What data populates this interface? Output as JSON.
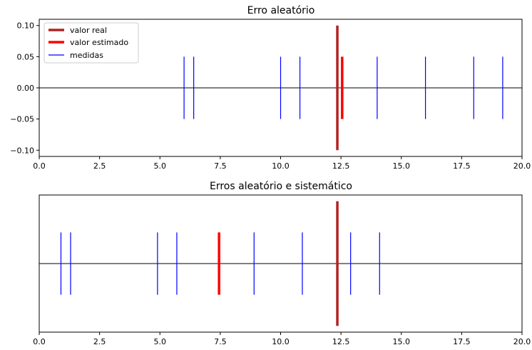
{
  "chart_data": [
    {
      "type": "line",
      "title": "Erro aleatório",
      "xlim": [
        0,
        20
      ],
      "ylim": [
        -0.11,
        0.11
      ],
      "x_ticks": [
        0.0,
        2.5,
        5.0,
        7.5,
        10.0,
        12.5,
        15.0,
        17.5,
        20.0
      ],
      "x_tick_labels": [
        "0.0",
        "2.5",
        "5.0",
        "7.5",
        "10.0",
        "12.5",
        "15.0",
        "17.5",
        "20.0"
      ],
      "y_ticks": [
        0.1,
        0.05,
        0.0,
        -0.05,
        -0.1
      ],
      "y_tick_labels": [
        "0.10",
        "0.05",
        "0.00",
        "−0.05",
        "−0.10"
      ],
      "show_y_ticks": true,
      "legend": {
        "placement": "top-left",
        "entries": [
          {
            "label": "valor real",
            "color": "#b22222"
          },
          {
            "label": "valor estimado",
            "color": "#ff0000"
          },
          {
            "label": "medidas",
            "color": "#0000ff"
          }
        ]
      },
      "zero_line": 0,
      "true_value": {
        "x": 12.35,
        "ymin": -0.1,
        "ymax": 0.1,
        "color": "#b22222"
      },
      "estimate": {
        "x": 12.55,
        "ymin": -0.05,
        "ymax": 0.05,
        "color": "#ff0000"
      },
      "measurements": {
        "x": [
          6.0,
          6.4,
          10.0,
          10.8,
          14.0,
          16.0,
          18.0,
          19.2
        ],
        "ymin": -0.05,
        "ymax": 0.05,
        "color": "#0000ff"
      }
    },
    {
      "type": "line",
      "title": "Erros aleatório e sistemático",
      "xlim": [
        0,
        20
      ],
      "ylim": [
        -0.11,
        0.11
      ],
      "x_ticks": [
        0.0,
        2.5,
        5.0,
        7.5,
        10.0,
        12.5,
        15.0,
        17.5,
        20.0
      ],
      "x_tick_labels": [
        "0.0",
        "2.5",
        "5.0",
        "7.5",
        "10.0",
        "12.5",
        "15.0",
        "17.5",
        "20.0"
      ],
      "show_y_ticks": false,
      "zero_line": 0,
      "true_value": {
        "x": 12.35,
        "ymin": -0.1,
        "ymax": 0.1,
        "color": "#b22222"
      },
      "estimate": {
        "x": 7.45,
        "ymin": -0.05,
        "ymax": 0.05,
        "color": "#ff0000"
      },
      "measurements": {
        "x": [
          0.9,
          1.3,
          4.9,
          5.7,
          8.9,
          10.9,
          12.9,
          14.1
        ],
        "ymin": -0.05,
        "ymax": 0.05,
        "color": "#0000ff"
      }
    }
  ]
}
